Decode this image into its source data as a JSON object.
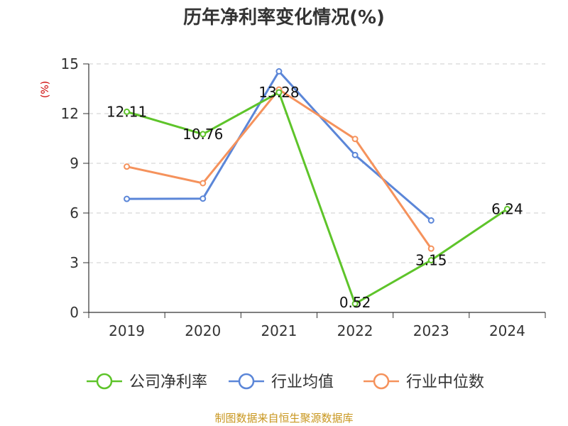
{
  "chart_data": {
    "type": "line",
    "title": "历年净利率变化情况(%)",
    "ylabel": "(%)",
    "xlabel": "",
    "categories": [
      "2019",
      "2020",
      "2021",
      "2022",
      "2023",
      "2024"
    ],
    "yticks": [
      "0",
      "3",
      "6",
      "9",
      "12",
      "15"
    ],
    "ylim": [
      0,
      15
    ],
    "grid": true,
    "legend_position": "bottom",
    "series": [
      {
        "name": "公司净利率",
        "color": "#5ec42a",
        "values": [
          12.11,
          10.76,
          13.28,
          0.52,
          3.15,
          6.24
        ],
        "labels": [
          "12.11",
          "10.76",
          "13.28",
          "0.52",
          "3.15",
          "6.24"
        ]
      },
      {
        "name": "行业均值",
        "color": "#5b86d8",
        "values": [
          6.85,
          6.87,
          14.55,
          9.5,
          5.55,
          null
        ],
        "labels": []
      },
      {
        "name": "行业中位数",
        "color": "#f5925c",
        "values": [
          8.8,
          7.8,
          13.45,
          10.47,
          3.85,
          null
        ],
        "labels": []
      }
    ]
  },
  "footer": {
    "source": "制图数据来自恒生聚源数据库"
  }
}
